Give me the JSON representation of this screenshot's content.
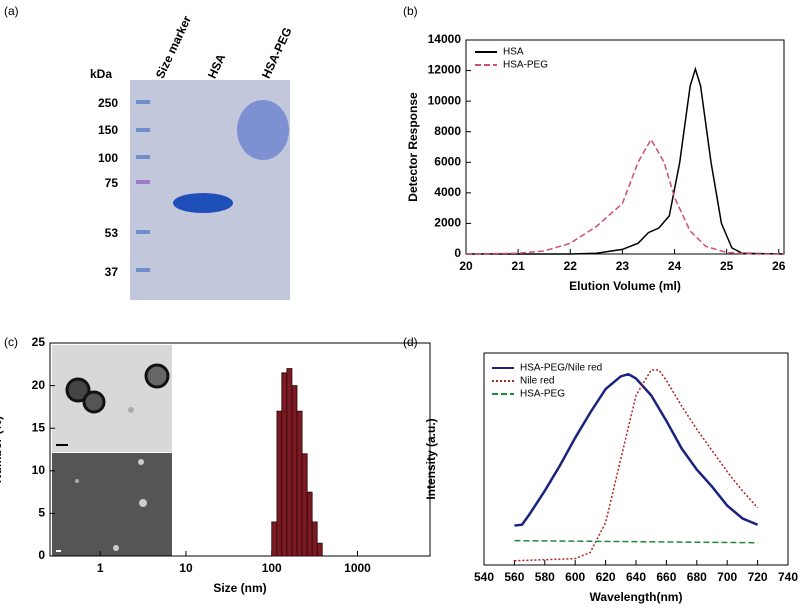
{
  "gel": {
    "panel": "(a)",
    "unit": "kDa",
    "lanes": [
      "Size marker",
      "HSA",
      "HSA-PEG"
    ],
    "markers": [
      "250",
      "150",
      "100",
      "75",
      "53",
      "37"
    ]
  },
  "chart_data": [
    {
      "type": "line",
      "panel": "(b)",
      "x_label": "Elution Volume (ml)",
      "y_label": "Detector Response",
      "xlim": [
        20,
        26.1
      ],
      "xticks": [
        20,
        21,
        22,
        23,
        24,
        25,
        26
      ],
      "ylim": [
        0,
        14000
      ],
      "yticks": [
        0,
        2000,
        4000,
        6000,
        8000,
        10000,
        12000,
        14000
      ],
      "series": [
        {
          "name": "HSA",
          "color": "#000000",
          "style": "solid",
          "x": [
            20,
            22,
            22.5,
            23,
            23.3,
            23.5,
            23.7,
            23.9,
            24.1,
            24.3,
            24.4,
            24.5,
            24.7,
            24.9,
            25.1,
            25.3,
            26.1
          ],
          "values": [
            0,
            0,
            50,
            300,
            700,
            1400,
            1700,
            2500,
            6000,
            11000,
            12100,
            11000,
            6000,
            2000,
            400,
            50,
            0
          ]
        },
        {
          "name": "HSA-PEG",
          "color": "#d0506e",
          "style": "dashed",
          "x": [
            20,
            21,
            21.5,
            22,
            22.5,
            23,
            23.3,
            23.55,
            23.8,
            24,
            24.3,
            24.6,
            25,
            25.5,
            26.1
          ],
          "values": [
            0,
            50,
            200,
            700,
            1800,
            3300,
            6000,
            7500,
            6000,
            3700,
            1500,
            500,
            100,
            0,
            0
          ]
        }
      ]
    },
    {
      "type": "histogram",
      "panel": "(c)",
      "x_label": "Size (nm)",
      "y_label": "Number (%)",
      "xlog": true,
      "xlim": [
        0.26,
        7000
      ],
      "xticks": [
        1,
        10,
        100,
        1000
      ],
      "ylim": [
        0,
        25
      ],
      "yticks": [
        0,
        5,
        10,
        15,
        20,
        25
      ],
      "color": "#7b1a22",
      "bins": [
        100,
        115,
        131,
        150,
        172,
        197,
        226,
        259,
        296,
        339,
        388
      ],
      "values": [
        4,
        17,
        21.5,
        22,
        20,
        17,
        12,
        7.5,
        4,
        1.5
      ]
    },
    {
      "type": "line",
      "panel": "(d)",
      "x_label": "Wavelength(nm)",
      "y_label": "Intensity (a.u.)",
      "xlim": [
        540,
        740
      ],
      "xticks": [
        540,
        560,
        580,
        600,
        620,
        640,
        660,
        680,
        700,
        720,
        740
      ],
      "ylim": [
        0,
        100
      ],
      "series": [
        {
          "name": "HSA-PEG/Nile red",
          "color": "#1a237e",
          "style": "solid",
          "x": [
            560,
            565,
            570,
            580,
            590,
            600,
            610,
            620,
            630,
            635,
            640,
            650,
            660,
            670,
            680,
            690,
            700,
            710,
            720
          ],
          "values": [
            18.6,
            19,
            24,
            35,
            47,
            60,
            72,
            83,
            89,
            90,
            88,
            80,
            68,
            55,
            45,
            37,
            28,
            22,
            19
          ]
        },
        {
          "name": "Nile red",
          "color": "#b22222",
          "style": "dotted",
          "x": [
            560,
            600,
            610,
            620,
            630,
            640,
            650,
            655,
            660,
            670,
            680,
            690,
            700,
            710,
            720
          ],
          "values": [
            2,
            3,
            6,
            20,
            50,
            80,
            92,
            92,
            87,
            75,
            64,
            54,
            44,
            35,
            27
          ]
        },
        {
          "name": "HSA-PEG",
          "color": "#1e8a3a",
          "style": "dashed",
          "x": [
            560,
            640,
            720
          ],
          "values": [
            11.5,
            11,
            10.5
          ]
        }
      ]
    }
  ]
}
